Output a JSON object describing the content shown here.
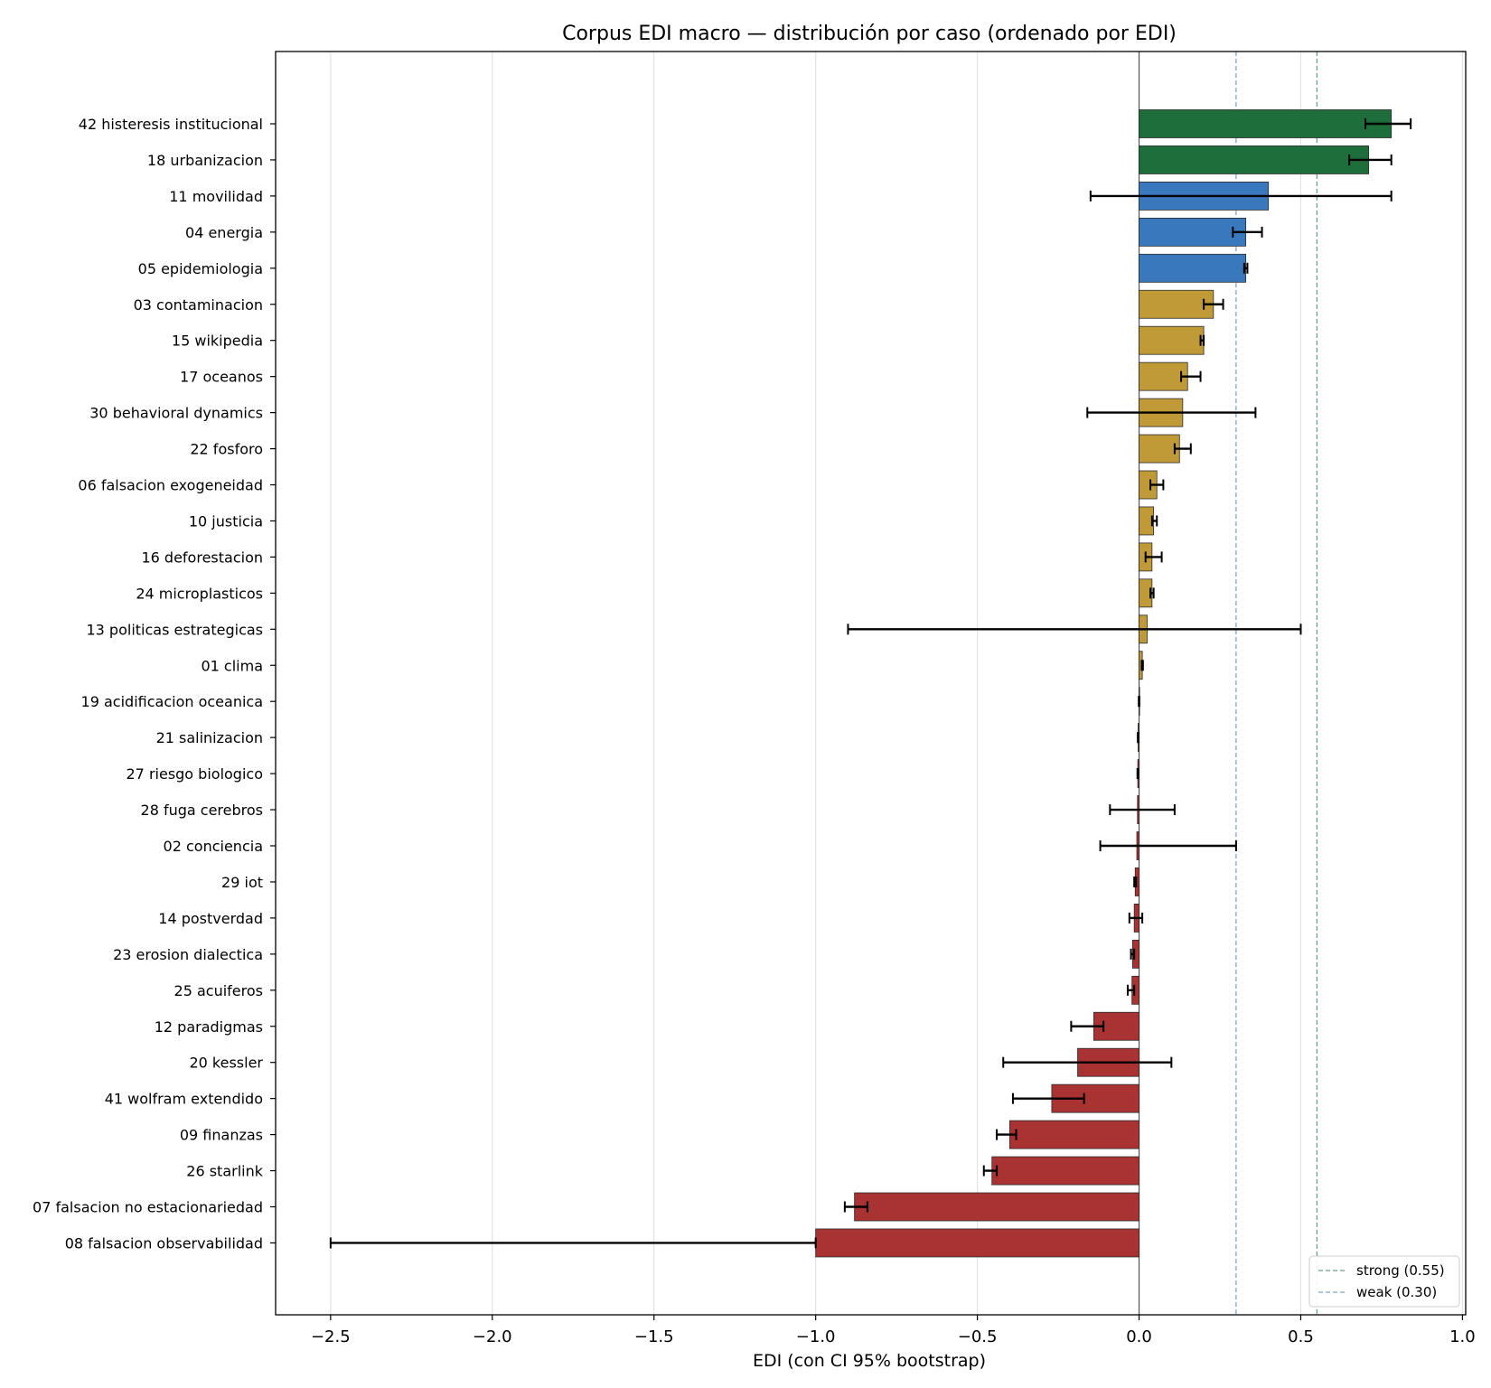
{
  "chart_data": {
    "type": "bar",
    "orientation": "horizontal",
    "title": "Corpus EDI macro — distribución por caso (ordenado por EDI)",
    "xlabel": "EDI (con CI 95% bootstrap)",
    "ylabel": "",
    "xlim": [
      -2.67,
      1.01
    ],
    "xticks": [
      -2.5,
      -2.0,
      -1.5,
      -1.0,
      -0.5,
      0.0,
      0.5,
      1.0
    ],
    "xtick_labels": [
      "−2.5",
      "−2.0",
      "−1.5",
      "−1.0",
      "−0.5",
      "0.0",
      "0.5",
      "1.0"
    ],
    "grid": "vertical",
    "legend_position": "bottom-right",
    "colors": {
      "strong": "#1e6e3b",
      "weak": "#3a78bd",
      "positive": "#c19a38",
      "negative": "#a93232",
      "threshold_strong": "#6b9e8e",
      "threshold_weak": "#7ba7cc"
    },
    "thresholds": [
      {
        "label": "strong (0.55)",
        "value": 0.55,
        "color_key": "threshold_strong"
      },
      {
        "label": "weak (0.30)",
        "value": 0.3,
        "color_key": "threshold_weak"
      }
    ],
    "bars": [
      {
        "label": "42 histeresis institucional",
        "value": 0.78,
        "ci": [
          0.7,
          0.84
        ],
        "class": "strong"
      },
      {
        "label": "18 urbanizacion",
        "value": 0.71,
        "ci": [
          0.65,
          0.78
        ],
        "class": "strong"
      },
      {
        "label": "11 movilidad",
        "value": 0.4,
        "ci": [
          -0.15,
          0.78
        ],
        "class": "weak"
      },
      {
        "label": "04 energia",
        "value": 0.33,
        "ci": [
          0.29,
          0.38
        ],
        "class": "weak"
      },
      {
        "label": "05 epidemiologia",
        "value": 0.33,
        "ci": [
          0.325,
          0.335
        ],
        "class": "weak"
      },
      {
        "label": "03 contaminacion",
        "value": 0.23,
        "ci": [
          0.2,
          0.26
        ],
        "class": "positive"
      },
      {
        "label": "15 wikipedia",
        "value": 0.2,
        "ci": [
          0.19,
          0.2
        ],
        "class": "positive"
      },
      {
        "label": "17 oceanos",
        "value": 0.15,
        "ci": [
          0.13,
          0.19
        ],
        "class": "positive"
      },
      {
        "label": "30 behavioral dynamics",
        "value": 0.135,
        "ci": [
          -0.16,
          0.36
        ],
        "class": "positive"
      },
      {
        "label": "22 fosforo",
        "value": 0.125,
        "ci": [
          0.11,
          0.16
        ],
        "class": "positive"
      },
      {
        "label": "06 falsacion exogeneidad",
        "value": 0.055,
        "ci": [
          0.035,
          0.075
        ],
        "class": "positive"
      },
      {
        "label": "10 justicia",
        "value": 0.045,
        "ci": [
          0.04,
          0.055
        ],
        "class": "positive"
      },
      {
        "label": "16 deforestacion",
        "value": 0.04,
        "ci": [
          0.02,
          0.07
        ],
        "class": "positive"
      },
      {
        "label": "24 microplasticos",
        "value": 0.04,
        "ci": [
          0.035,
          0.045
        ],
        "class": "positive"
      },
      {
        "label": "13 politicas estrategicas",
        "value": 0.025,
        "ci": [
          -0.9,
          0.5
        ],
        "class": "positive"
      },
      {
        "label": "01 clima",
        "value": 0.01,
        "ci": [
          0.008,
          0.012
        ],
        "class": "positive"
      },
      {
        "label": "19 acidificacion oceanica",
        "value": 0.0,
        "ci": [
          -0.001,
          0.001
        ],
        "class": "positive"
      },
      {
        "label": "21 salinizacion",
        "value": -0.003,
        "ci": [
          -0.004,
          -0.002
        ],
        "class": "negative"
      },
      {
        "label": "27 riesgo biologico",
        "value": -0.004,
        "ci": [
          -0.005,
          -0.003
        ],
        "class": "negative"
      },
      {
        "label": "28 fuga cerebros",
        "value": -0.005,
        "ci": [
          -0.09,
          0.11
        ],
        "class": "negative"
      },
      {
        "label": "02 conciencia",
        "value": -0.007,
        "ci": [
          -0.12,
          0.3
        ],
        "class": "negative"
      },
      {
        "label": "29 iot",
        "value": -0.012,
        "ci": [
          -0.015,
          -0.009
        ],
        "class": "negative"
      },
      {
        "label": "14 postverdad",
        "value": -0.015,
        "ci": [
          -0.03,
          0.01
        ],
        "class": "negative"
      },
      {
        "label": "23 erosion dialectica",
        "value": -0.02,
        "ci": [
          -0.025,
          -0.015
        ],
        "class": "negative"
      },
      {
        "label": "25 acuiferos",
        "value": -0.022,
        "ci": [
          -0.035,
          -0.015
        ],
        "class": "negative"
      },
      {
        "label": "12 paradigmas",
        "value": -0.14,
        "ci": [
          -0.21,
          -0.11
        ],
        "class": "negative"
      },
      {
        "label": "20 kessler",
        "value": -0.19,
        "ci": [
          -0.42,
          0.1
        ],
        "class": "negative"
      },
      {
        "label": "41 wolfram extendido",
        "value": -0.27,
        "ci": [
          -0.39,
          -0.17
        ],
        "class": "negative"
      },
      {
        "label": "09 finanzas",
        "value": -0.4,
        "ci": [
          -0.44,
          -0.38
        ],
        "class": "negative"
      },
      {
        "label": "26 starlink",
        "value": -0.455,
        "ci": [
          -0.48,
          -0.44
        ],
        "class": "negative"
      },
      {
        "label": "07 falsacion no estacionariedad",
        "value": -0.88,
        "ci": [
          -0.91,
          -0.84
        ],
        "class": "negative"
      },
      {
        "label": "08 falsacion observabilidad",
        "value": -1.0,
        "ci": [
          -2.5,
          -1.0
        ],
        "class": "negative"
      }
    ]
  }
}
